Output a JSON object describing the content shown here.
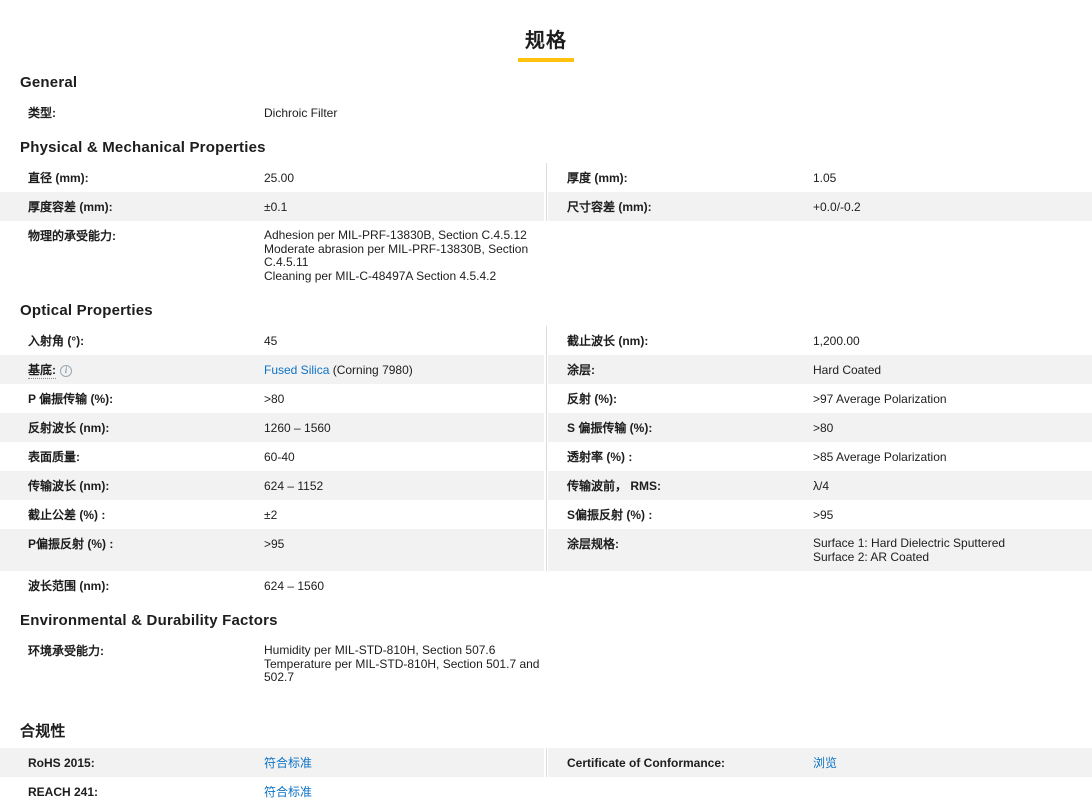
{
  "page": {
    "title": "规格"
  },
  "colors": {
    "accent": "#ffc20e",
    "link": "#0d72c4",
    "stripe": "#f2f2f2",
    "divider": "#dcdcdc",
    "text": "#1d1d1d"
  },
  "sections": [
    {
      "id": "general",
      "heading": "General",
      "rows": [
        {
          "shaded": false,
          "cells": [
            {
              "label": "类型:",
              "value": "Dichroic Filter"
            }
          ]
        }
      ]
    },
    {
      "id": "physical-mechanical",
      "heading": "Physical & Mechanical Properties",
      "rows": [
        {
          "shaded": false,
          "cells": [
            {
              "label": "直径 (mm):",
              "value": "25.00"
            },
            {
              "label": "厚度 (mm):",
              "value": "1.05"
            }
          ]
        },
        {
          "shaded": true,
          "cells": [
            {
              "label": "厚度容差 (mm):",
              "value": "±0.1"
            },
            {
              "label": "尺寸容差 (mm):",
              "value": "+0.0/-0.2"
            }
          ]
        },
        {
          "shaded": false,
          "cells": [
            {
              "label": "物理的承受能力:",
              "value_lines": [
                "Adhesion per MIL-PRF-13830B, Section C.4.5.12",
                "Moderate abrasion per MIL-PRF-13830B, Section",
                "C.4.5.11",
                "Cleaning per MIL-C-48497A Section 4.5.4.2"
              ]
            }
          ]
        }
      ]
    },
    {
      "id": "optical",
      "heading": "Optical Properties",
      "rows": [
        {
          "shaded": false,
          "cells": [
            {
              "label": "入射角 (°):",
              "value": "45"
            },
            {
              "label": "截止波长 (nm):",
              "value": "1,200.00"
            }
          ]
        },
        {
          "shaded": true,
          "cells": [
            {
              "label": "基底:",
              "tooltip": true,
              "info_icon": true,
              "value_parts": [
                {
                  "text": "Fused Silica",
                  "link": true
                },
                {
                  "text": " (Corning 7980)"
                }
              ]
            },
            {
              "label": "涂层:",
              "value": "Hard Coated"
            }
          ]
        },
        {
          "shaded": false,
          "cells": [
            {
              "label": "P 偏振传输 (%):",
              "value": ">80"
            },
            {
              "label": "反射 (%):",
              "value": ">97 Average Polarization"
            }
          ]
        },
        {
          "shaded": true,
          "cells": [
            {
              "label": "反射波长 (nm):",
              "value": "1260 – 1560"
            },
            {
              "label": "S 偏振传输 (%):",
              "value": ">80"
            }
          ]
        },
        {
          "shaded": false,
          "cells": [
            {
              "label": "表面质量:",
              "value": "60-40"
            },
            {
              "label": "透射率 (%) :",
              "value": ">85 Average Polarization"
            }
          ]
        },
        {
          "shaded": true,
          "cells": [
            {
              "label": "传输波长 (nm):",
              "value": "624 – 1152"
            },
            {
              "label": "传输波前， RMS:",
              "value": "λ/4"
            }
          ]
        },
        {
          "shaded": false,
          "cells": [
            {
              "label": "截止公差 (%) :",
              "value": "±2"
            },
            {
              "label": "S偏振反射 (%) :",
              "value": ">95"
            }
          ]
        },
        {
          "shaded": true,
          "cells": [
            {
              "label": "P偏振反射 (%) :",
              "value": ">95"
            },
            {
              "label": "涂层规格:",
              "value_lines": [
                "Surface 1: Hard Dielectric Sputtered",
                "Surface 2: AR Coated"
              ]
            }
          ]
        },
        {
          "shaded": false,
          "cells": [
            {
              "label": "波长范围 (nm):",
              "value": "624 – 1560"
            }
          ]
        }
      ]
    },
    {
      "id": "environmental",
      "heading": "Environmental & Durability Factors",
      "rows": [
        {
          "shaded": false,
          "cells": [
            {
              "label": "环境承受能力:",
              "value_lines": [
                "Humidity per MIL-STD-810H, Section 507.6",
                "Temperature per MIL-STD-810H, Section 501.7 and",
                "502.7"
              ]
            }
          ]
        }
      ]
    },
    {
      "id": "compliance",
      "heading": "合规性",
      "extra_top": true,
      "rows": [
        {
          "shaded": true,
          "cells": [
            {
              "label": "RoHS 2015:",
              "value_parts": [
                {
                  "text": "符合标准",
                  "link": true
                }
              ]
            },
            {
              "label": "Certificate of Conformance:",
              "value_parts": [
                {
                  "text": "浏览",
                  "link": true
                }
              ]
            }
          ]
        },
        {
          "shaded": false,
          "cells": [
            {
              "label": "REACH 241:",
              "value_parts": [
                {
                  "text": "符合标准",
                  "link": true
                }
              ]
            }
          ]
        }
      ]
    }
  ]
}
